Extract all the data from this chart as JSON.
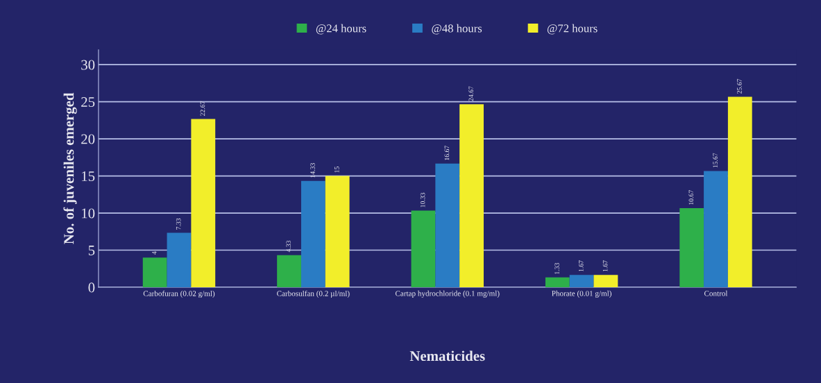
{
  "chart_data": {
    "type": "bar",
    "xlabel": "Nematicides",
    "ylabel": "No. of juveniles emerged",
    "categories": [
      "Carbofuran (0.02 g/ml)",
      "Carbosulfan (0.2 µl/ml)",
      "Cartap hydrochloride (0.1 mg/ml)",
      "Phorate (0.01 g/ml)",
      "Control"
    ],
    "series": [
      {
        "name": "@24 hours",
        "color": "#2eb04a",
        "values": [
          4,
          4.33,
          10.33,
          1.33,
          10.67
        ]
      },
      {
        "name": "@48 hours",
        "color": "#2a7cc4",
        "values": [
          7.33,
          14.33,
          16.67,
          1.67,
          15.67
        ]
      },
      {
        "name": "@72 hours",
        "color": "#f2ee2a",
        "values": [
          22.67,
          15,
          24.67,
          1.67,
          25.67
        ]
      }
    ],
    "ylim": [
      0,
      32
    ],
    "yticks": [
      0,
      5,
      10,
      15,
      20,
      25,
      30
    ],
    "grid": "y",
    "legend": "top",
    "data_labels": true
  }
}
